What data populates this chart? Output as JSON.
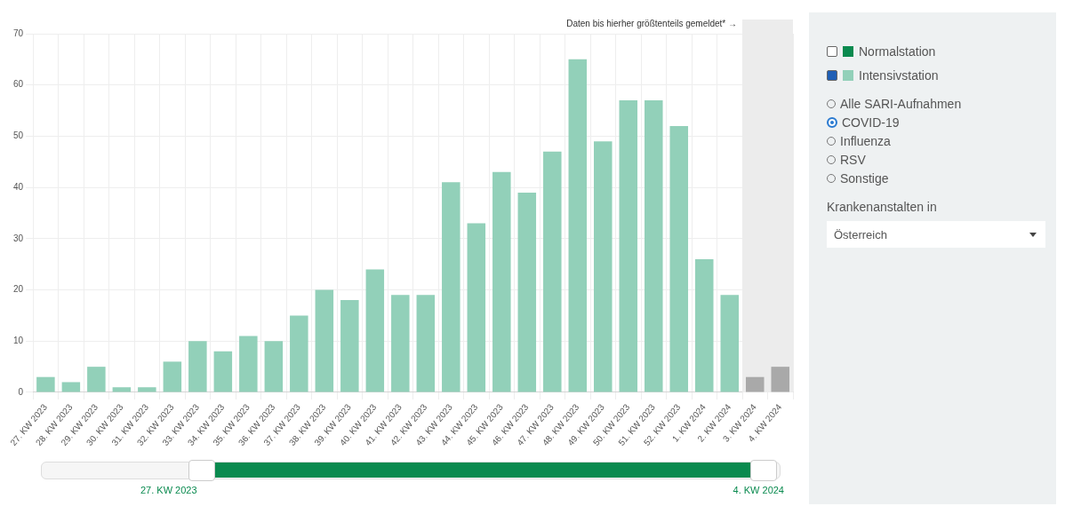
{
  "chart_data": {
    "type": "bar",
    "categories": [
      "27. KW 2023",
      "28. KW 2023",
      "29. KW 2023",
      "30. KW 2023",
      "31. KW 2023",
      "32. KW 2023",
      "33. KW 2023",
      "34. KW 2023",
      "35. KW 2023",
      "36. KW 2023",
      "37. KW 2023",
      "38. KW 2023",
      "39. KW 2023",
      "40. KW 2023",
      "41. KW 2023",
      "42. KW 2023",
      "43. KW 2023",
      "44. KW 2023",
      "45. KW 2023",
      "46. KW 2023",
      "47. KW 2023",
      "48. KW 2023",
      "49. KW 2023",
      "50. KW 2023",
      "51. KW 2023",
      "52. KW 2023",
      "1. KW 2024",
      "2. KW 2024",
      "3. KW 2024",
      "4. KW 2024"
    ],
    "series": [
      {
        "name": "Normalstation",
        "color": "#0a8a4f",
        "values": [
          null,
          null,
          null,
          null,
          null,
          null,
          null,
          null,
          null,
          null,
          null,
          null,
          null,
          null,
          null,
          null,
          null,
          null,
          null,
          null,
          null,
          null,
          null,
          null,
          null,
          null,
          null,
          null,
          null,
          null
        ]
      },
      {
        "name": "Intensivstation",
        "color": "#92d0b9",
        "values": [
          3,
          2,
          5,
          1,
          1,
          6,
          10,
          8,
          11,
          10,
          15,
          20,
          18,
          24,
          19,
          19,
          41,
          33,
          43,
          39,
          47,
          65,
          49,
          57,
          57,
          52,
          26,
          19,
          3,
          5
        ],
        "colors": [
          "#92d0b9",
          "#92d0b9",
          "#92d0b9",
          "#92d0b9",
          "#92d0b9",
          "#92d0b9",
          "#92d0b9",
          "#92d0b9",
          "#92d0b9",
          "#92d0b9",
          "#92d0b9",
          "#92d0b9",
          "#92d0b9",
          "#92d0b9",
          "#92d0b9",
          "#92d0b9",
          "#92d0b9",
          "#92d0b9",
          "#92d0b9",
          "#92d0b9",
          "#92d0b9",
          "#92d0b9",
          "#92d0b9",
          "#92d0b9",
          "#92d0b9",
          "#92d0b9",
          "#92d0b9",
          "#92d0b9",
          "#a9a9a9",
          "#a9a9a9"
        ]
      }
    ],
    "ylim": [
      0,
      70
    ],
    "yticks": [
      0,
      10,
      20,
      30,
      40,
      50,
      60,
      70
    ],
    "grid": true,
    "legend": "right",
    "bands": [
      {
        "axis": "x",
        "from": "3. KW 2024",
        "to": "4. KW 2024",
        "color": "#ececec"
      }
    ],
    "annotations": [
      "Daten bis hierher größtenteils gemeldet* →",
      "Alle SARI-Aufnahmen",
      "COVID-19",
      "Influenza",
      "RSV",
      "Sonstige",
      "Krankenanstalten in",
      "Österreich",
      "27. KW 2023",
      "4. KW 2024"
    ]
  }
}
